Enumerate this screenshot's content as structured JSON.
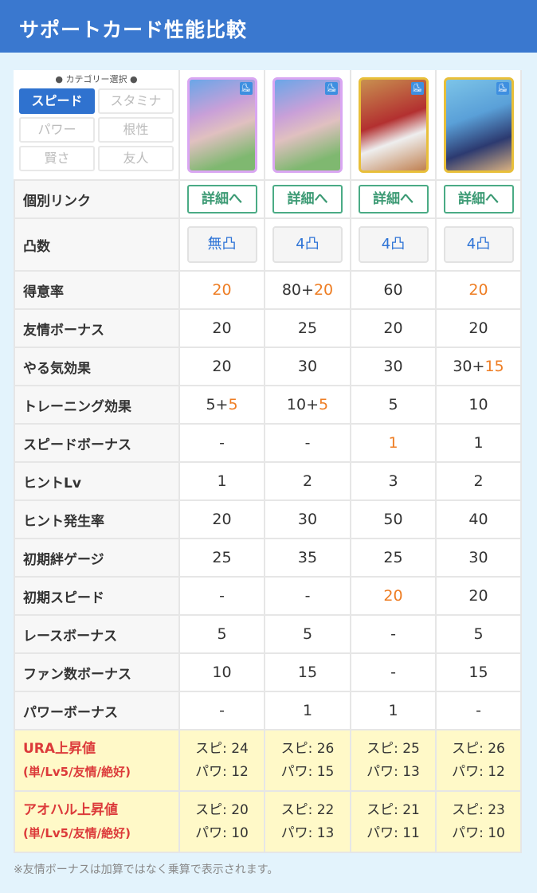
{
  "header": {
    "title": "サポートカード性能比較"
  },
  "category": {
    "title": "● カテゴリー選択 ●",
    "items": [
      {
        "label": "スピード",
        "active": true
      },
      {
        "label": "スタミナ"
      },
      {
        "label": "パワー"
      },
      {
        "label": "根性"
      },
      {
        "label": "賢さ"
      },
      {
        "label": "友人"
      }
    ]
  },
  "cards": [
    {
      "frame": "#d9a6f2",
      "type_icon": "speed-shoe-icon"
    },
    {
      "frame": "#d9a6f2",
      "type_icon": "speed-shoe-icon"
    },
    {
      "frame": "#e8bf3a",
      "type_icon": "speed-shoe-icon"
    },
    {
      "frame": "#e8bf3a",
      "type_icon": "speed-shoe-icon"
    }
  ],
  "link_row": {
    "label": "個別リンク",
    "button": "詳細へ"
  },
  "totsu_row": {
    "label": "凸数",
    "values": [
      "無凸",
      "4凸",
      "4凸",
      "4凸"
    ]
  },
  "rows": [
    {
      "label": "得意率",
      "cells": [
        {
          "v": "",
          "o": "20"
        },
        {
          "v": "80+",
          "o": "20"
        },
        {
          "v": "60",
          "o": ""
        },
        {
          "v": "",
          "o": "20"
        }
      ]
    },
    {
      "label": "友情ボーナス",
      "cells": [
        {
          "v": "20",
          "o": ""
        },
        {
          "v": "25",
          "o": ""
        },
        {
          "v": "20",
          "o": ""
        },
        {
          "v": "20",
          "o": ""
        }
      ]
    },
    {
      "label": "やる気効果",
      "cells": [
        {
          "v": "20",
          "o": ""
        },
        {
          "v": "30",
          "o": ""
        },
        {
          "v": "30",
          "o": ""
        },
        {
          "v": "30+",
          "o": "15"
        }
      ]
    },
    {
      "label": "トレーニング効果",
      "cells": [
        {
          "v": "5+",
          "o": "5"
        },
        {
          "v": "10+",
          "o": "5"
        },
        {
          "v": "5",
          "o": ""
        },
        {
          "v": "10",
          "o": ""
        }
      ]
    },
    {
      "label": "スピードボーナス",
      "cells": [
        {
          "v": "-",
          "o": ""
        },
        {
          "v": "-",
          "o": ""
        },
        {
          "v": "",
          "o": "1"
        },
        {
          "v": "1",
          "o": ""
        }
      ]
    },
    {
      "label": "ヒントLv",
      "cells": [
        {
          "v": "1",
          "o": ""
        },
        {
          "v": "2",
          "o": ""
        },
        {
          "v": "3",
          "o": ""
        },
        {
          "v": "2",
          "o": ""
        }
      ]
    },
    {
      "label": "ヒント発生率",
      "cells": [
        {
          "v": "20",
          "o": ""
        },
        {
          "v": "30",
          "o": ""
        },
        {
          "v": "50",
          "o": ""
        },
        {
          "v": "40",
          "o": ""
        }
      ]
    },
    {
      "label": "初期絆ゲージ",
      "cells": [
        {
          "v": "25",
          "o": ""
        },
        {
          "v": "35",
          "o": ""
        },
        {
          "v": "25",
          "o": ""
        },
        {
          "v": "30",
          "o": ""
        }
      ]
    },
    {
      "label": "初期スピード",
      "cells": [
        {
          "v": "-",
          "o": ""
        },
        {
          "v": "-",
          "o": ""
        },
        {
          "v": "",
          "o": "20"
        },
        {
          "v": "20",
          "o": ""
        }
      ]
    },
    {
      "label": "レースボーナス",
      "cells": [
        {
          "v": "5",
          "o": ""
        },
        {
          "v": "5",
          "o": ""
        },
        {
          "v": "-",
          "o": ""
        },
        {
          "v": "5",
          "o": ""
        }
      ]
    },
    {
      "label": "ファン数ボーナス",
      "cells": [
        {
          "v": "10",
          "o": ""
        },
        {
          "v": "15",
          "o": ""
        },
        {
          "v": "-",
          "o": ""
        },
        {
          "v": "15",
          "o": ""
        }
      ]
    },
    {
      "label": "パワーボーナス",
      "cells": [
        {
          "v": "-",
          "o": ""
        },
        {
          "v": "1",
          "o": ""
        },
        {
          "v": "1",
          "o": ""
        },
        {
          "v": "-",
          "o": ""
        }
      ]
    }
  ],
  "gain_rows": [
    {
      "label": "URA上昇値",
      "sub": "(単/Lv5/友情/絶好)",
      "cells": [
        [
          "スピ: 24",
          "パワ: 12"
        ],
        [
          "スピ: 26",
          "パワ: 15"
        ],
        [
          "スピ: 25",
          "パワ: 13"
        ],
        [
          "スピ: 26",
          "パワ: 12"
        ]
      ]
    },
    {
      "label": "アオハル上昇値",
      "sub": "(単/Lv5/友情/絶好)",
      "cells": [
        [
          "スピ: 20",
          "パワ: 10"
        ],
        [
          "スピ: 22",
          "パワ: 13"
        ],
        [
          "スピ: 21",
          "パワ: 11"
        ],
        [
          "スピ: 23",
          "パワ: 10"
        ]
      ]
    }
  ],
  "footnote": "※友情ボーナスは加算ではなく乗算で表示されます。"
}
